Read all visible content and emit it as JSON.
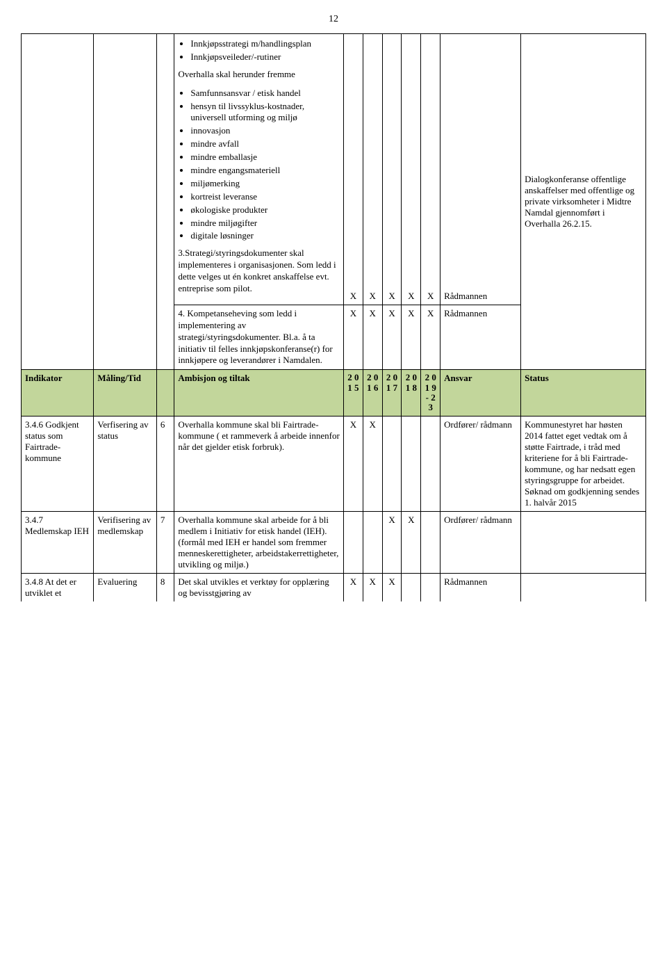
{
  "page_number": "12",
  "top_row": {
    "bullets1": [
      "Innkjøpsstrategi m/handlingsplan",
      "Innkjøpsveileder/-rutiner"
    ],
    "intro2": "Overhalla skal herunder fremme",
    "bullets2": [
      "Samfunnsansvar / etisk handel",
      "hensyn til livssyklus-kostnader, universell utforming og miljø",
      "innovasjon",
      "mindre avfall",
      "mindre emballasje",
      "mindre engangsmateriell",
      "miljømerking",
      "kortreist leveranse",
      "økologiske produkter",
      "mindre miljøgifter",
      "digitale løsninger"
    ],
    "para3": "3.Strategi/styringsdokumenter skal implementeres i organisasjonen. Som ledd i dette velges ut én konkret anskaffelse evt. entreprise som pilot.",
    "para4": "4. Kompetanseheving som ledd i implementering av strategi/styringsdokumenter. Bl.a. å ta initiativ til felles innkjøpskonferanse(r) for innkjøpere og leverandører i Namdalen.",
    "marks3": [
      "X",
      "X",
      "X",
      "X",
      "X"
    ],
    "marks4": [
      "X",
      "X",
      "X",
      "X",
      "X"
    ],
    "ansvar3": "Rådmannen",
    "ansvar4": "Rådmannen",
    "status": "Dialogkonferanse offentlige anskaffelser med offentlige og private virksomheter i Midtre Namdal gjennomført i Overhalla 26.2.15."
  },
  "header": {
    "col1": "Indikator",
    "col2": "Måling/Tid",
    "col3": "Ambisjon og tiltak",
    "tiny_years": [
      "2 0 1 5",
      "2 0 1 6",
      "2 0 1 7",
      "2 0 1 8",
      "2 0 1 9 - 2 3"
    ],
    "col_ansvar": "Ansvar",
    "col_status": "Status"
  },
  "rows": [
    {
      "indikator": "3.4.6 Godkjent status som Fairtrade-kommune",
      "maling": "Verfisering av status",
      "num": "6",
      "tiltak": "Overhalla kommune skal bli Fairtrade-kommune ( et rammeverk å arbeide innenfor når det gjelder etisk forbruk).",
      "marks": [
        "X",
        "X",
        "",
        "",
        ""
      ],
      "ansvar": "Ordfører/ rådmann",
      "status": "Kommunestyret har høsten 2014 fattet eget vedtak om å støtte Fairtrade, i tråd med kriteriene for å bli Fairtrade-kommune, og har nedsatt egen styringsgruppe for arbeidet.\nSøknad om godkjenning sendes 1. halvår 2015"
    },
    {
      "indikator": "3.4.7 Medlemskap IEH",
      "maling": "Verifisering av medlemskap",
      "num": "7",
      "tiltak": "Overhalla kommune skal arbeide for å bli medlem i Initiativ for etisk handel (IEH). (formål med IEH er handel som fremmer menneskerettigheter, arbeidstakerrettigheter, utvikling og miljø.)",
      "marks": [
        "",
        "",
        "X",
        "X",
        ""
      ],
      "ansvar": "Ordfører/ rådmann",
      "status": ""
    },
    {
      "indikator": "3.4.8 At det er utviklet et",
      "maling": "Evaluering",
      "num": "8",
      "tiltak": "Det skal utvikles et verktøy for opplæring og bevisstgjøring av",
      "marks": [
        "X",
        "X",
        "X",
        "",
        ""
      ],
      "ansvar": "Rådmannen",
      "status": ""
    }
  ]
}
